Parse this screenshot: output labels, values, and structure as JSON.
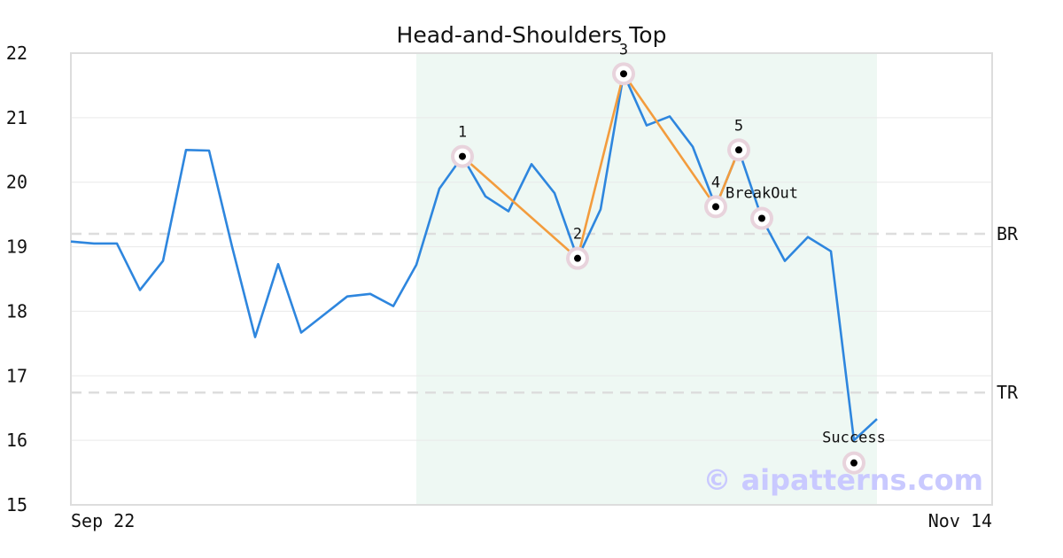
{
  "chart_data": {
    "type": "line",
    "title": "Head-and-Shoulders Top",
    "xlabel": "",
    "ylabel": "",
    "ylim": [
      15,
      22
    ],
    "y_ticks": [
      15,
      16,
      17,
      18,
      19,
      20,
      21,
      22
    ],
    "x_tick_labels": [
      "Sep 22",
      "Nov 14"
    ],
    "x_index_range": [
      0,
      40
    ],
    "grid": "horizontal",
    "colors": {
      "price": "#2e86de",
      "pattern": "#f39c3d",
      "highlight_band": "#eef8f3",
      "ref_lines": "#dddddd",
      "marker_halo": "#e8d3dc",
      "marker": "#000000"
    },
    "series": [
      {
        "values": [
          19.08,
          19.05,
          19.05,
          18.33,
          18.78,
          20.5,
          20.49,
          19.0,
          17.6,
          18.73,
          17.67,
          17.95,
          18.23,
          18.27,
          18.08,
          18.72,
          19.9,
          20.4,
          19.78,
          19.55,
          20.28,
          19.83,
          18.82,
          19.58,
          21.68,
          20.88,
          21.02,
          20.55,
          19.62,
          20.5,
          19.44,
          18.78,
          19.15,
          18.93,
          16.0,
          16.33
        ]
      }
    ],
    "highlight": {
      "from_index": 15,
      "to_index": 35
    },
    "reference_lines": [
      {
        "label": "BR",
        "y": 19.2
      },
      {
        "label": "TR",
        "y": 16.74
      }
    ],
    "pattern_points": [
      {
        "label": "1",
        "x": 17,
        "y": 20.4
      },
      {
        "label": "2",
        "x": 22,
        "y": 18.82
      },
      {
        "label": "3",
        "x": 24,
        "y": 21.68
      },
      {
        "label": "4",
        "x": 28,
        "y": 19.62
      },
      {
        "label": "5",
        "x": 29,
        "y": 20.5
      }
    ],
    "events": [
      {
        "label": "BreakOut",
        "x": 30,
        "y": 19.44
      },
      {
        "label": "Success",
        "x": 34,
        "y": 15.65
      }
    ],
    "watermark": "© aipatterns.com"
  }
}
